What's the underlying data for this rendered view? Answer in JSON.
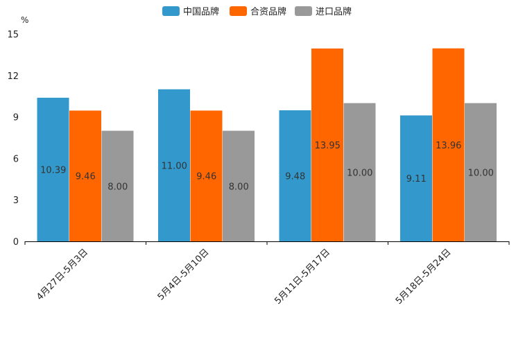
{
  "chart_data": {
    "type": "bar",
    "title": "",
    "xlabel": "",
    "ylabel": "%",
    "ylim": [
      0,
      15
    ],
    "yticks": [
      0,
      3,
      6,
      9,
      12,
      15
    ],
    "legend_position": "top-center",
    "categories": [
      "4月27日-5月3日",
      "5月4日-5月10日",
      "5月11日-5月17日",
      "5月18日-5月24日"
    ],
    "series": [
      {
        "name": "中国品牌",
        "color": "#3399cc",
        "values": [
          10.39,
          11.0,
          9.48,
          9.11
        ],
        "labels": [
          "10.39",
          "11.00",
          "9.48",
          "9.11"
        ]
      },
      {
        "name": "合资品牌",
        "color": "#ff6600",
        "values": [
          9.46,
          9.46,
          13.95,
          13.96
        ],
        "labels": [
          "9.46",
          "9.46",
          "13.95",
          "13.96"
        ]
      },
      {
        "name": "进口品牌",
        "color": "#999999",
        "values": [
          8.0,
          8.0,
          10.0,
          10.0
        ],
        "labels": [
          "8.00",
          "8.00",
          "10.00",
          "10.00"
        ]
      }
    ]
  }
}
